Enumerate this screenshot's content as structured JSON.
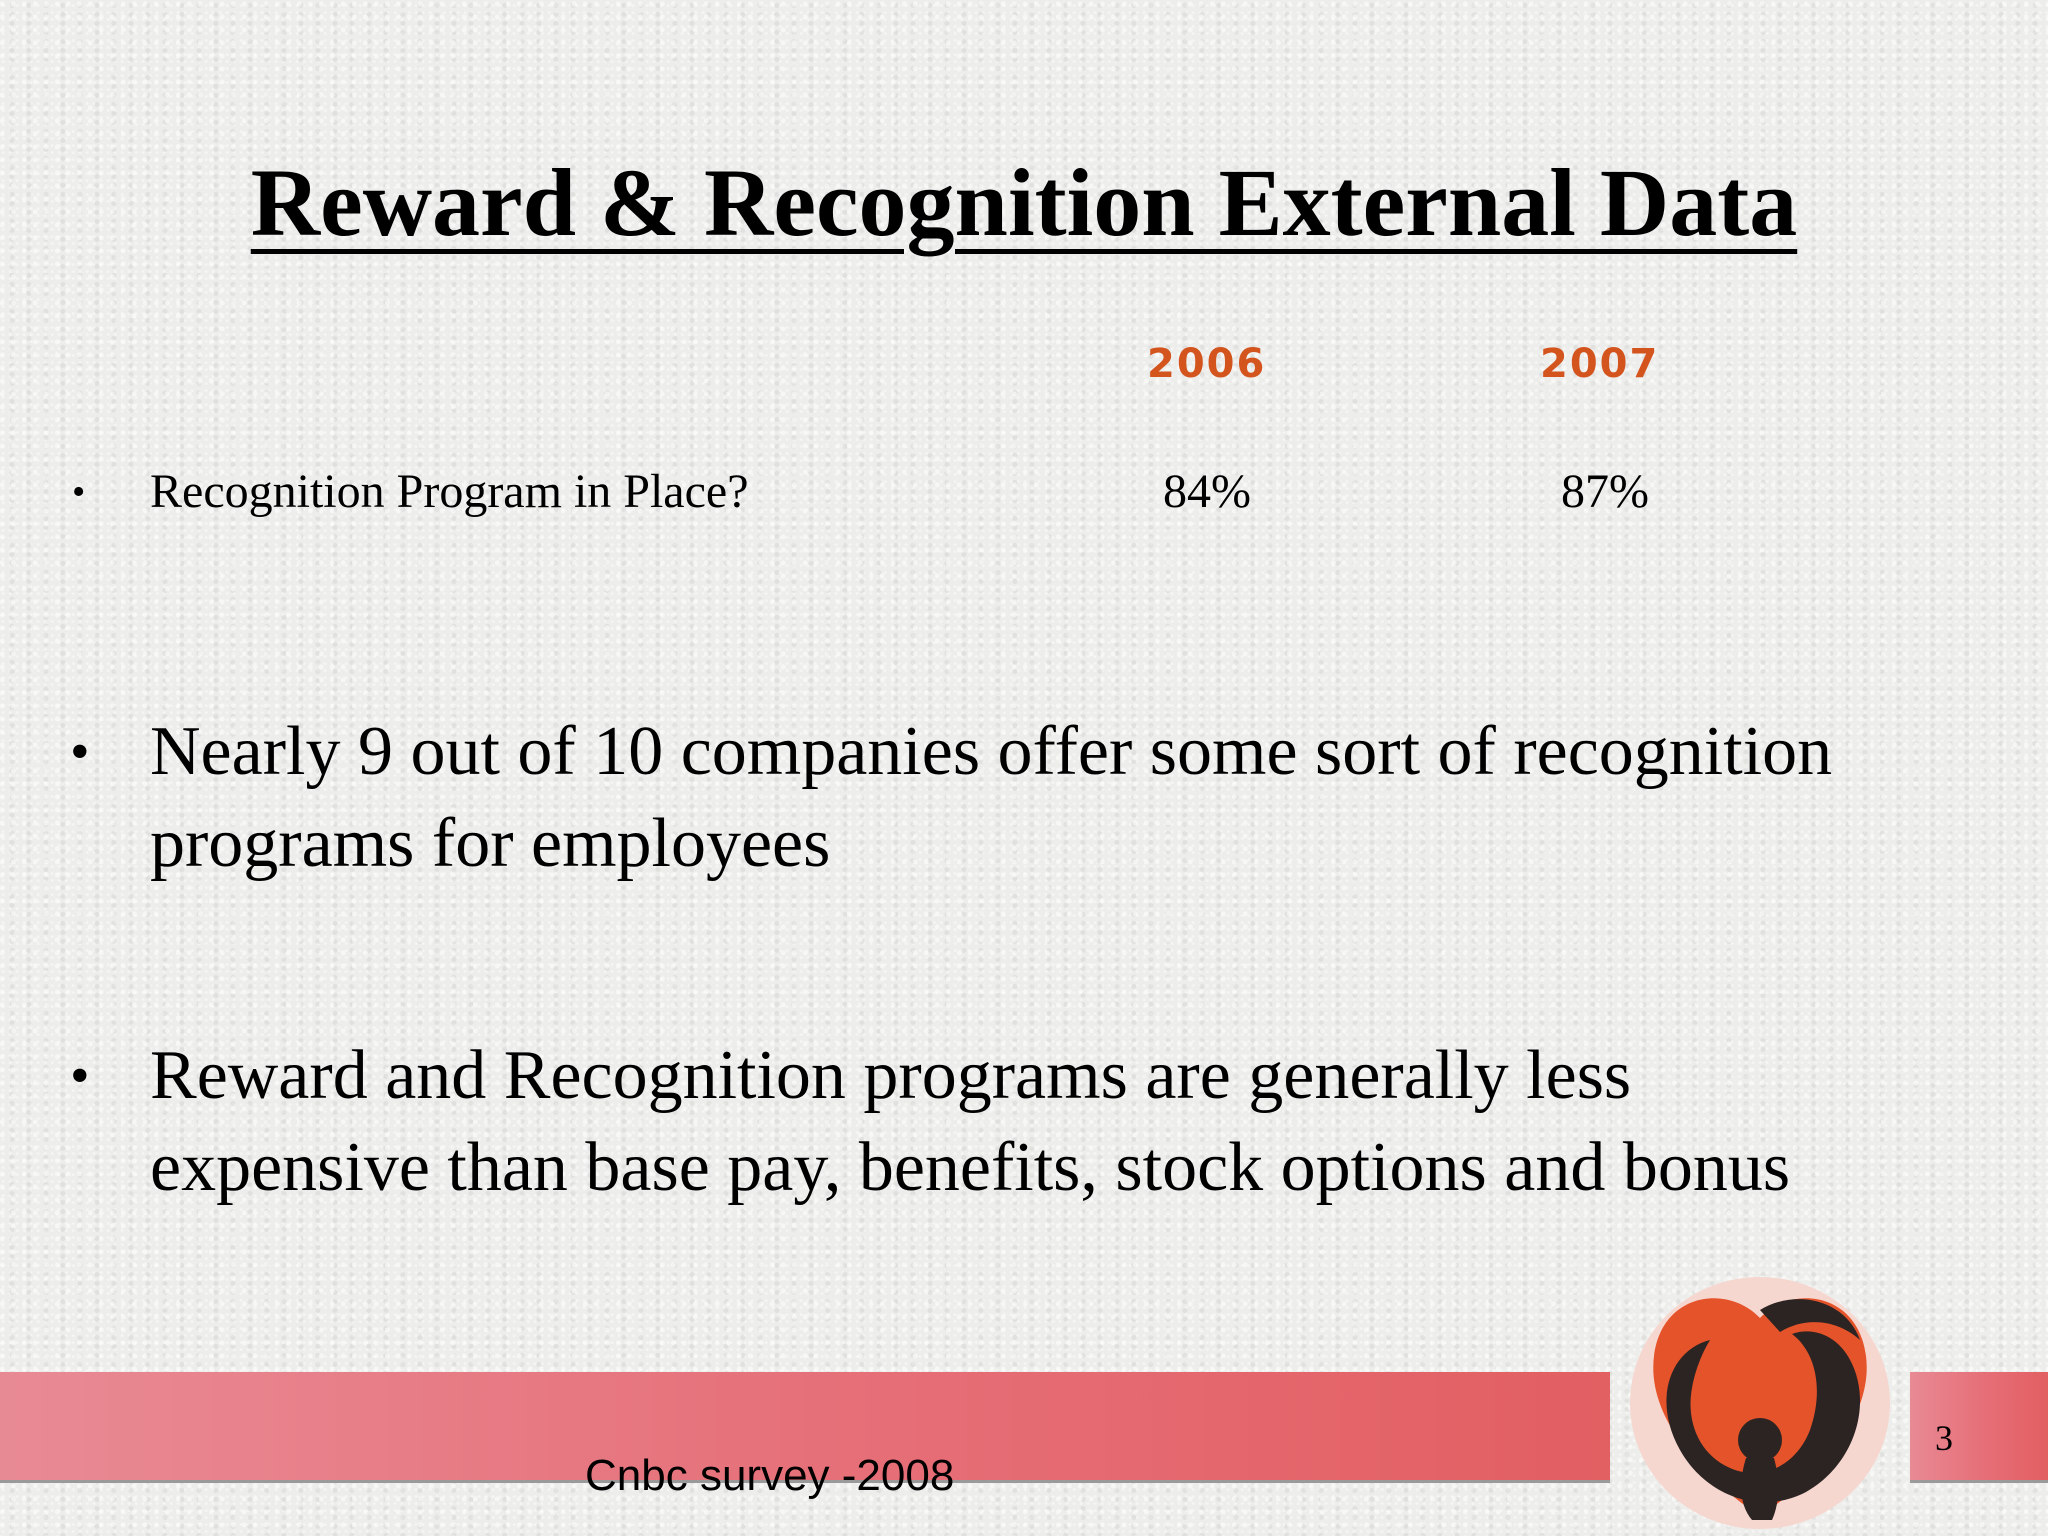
{
  "slide": {
    "title": "Reward & Recognition External Data",
    "table": {
      "year_headers": [
        "2006",
        "2007"
      ],
      "row_label": "Recognition Program in Place?",
      "values": [
        "84%",
        "87%"
      ],
      "bullet": "•"
    },
    "bullets": [
      "Nearly 9 out of 10 companies offer some sort of recognition programs for employees",
      "Reward and Recognition programs are generally less expensive than base pay, benefits, stock options and bonus"
    ],
    "bullet_symbol": "•",
    "source": "Cnbc survey -2008",
    "page_number": "3",
    "colors": {
      "year_accent": "#d4541e",
      "band": "#e66e77",
      "logo_orange": "#e5532a",
      "logo_dark": "#2b2422"
    },
    "logo_icon": "heart-figure-logo-icon"
  }
}
